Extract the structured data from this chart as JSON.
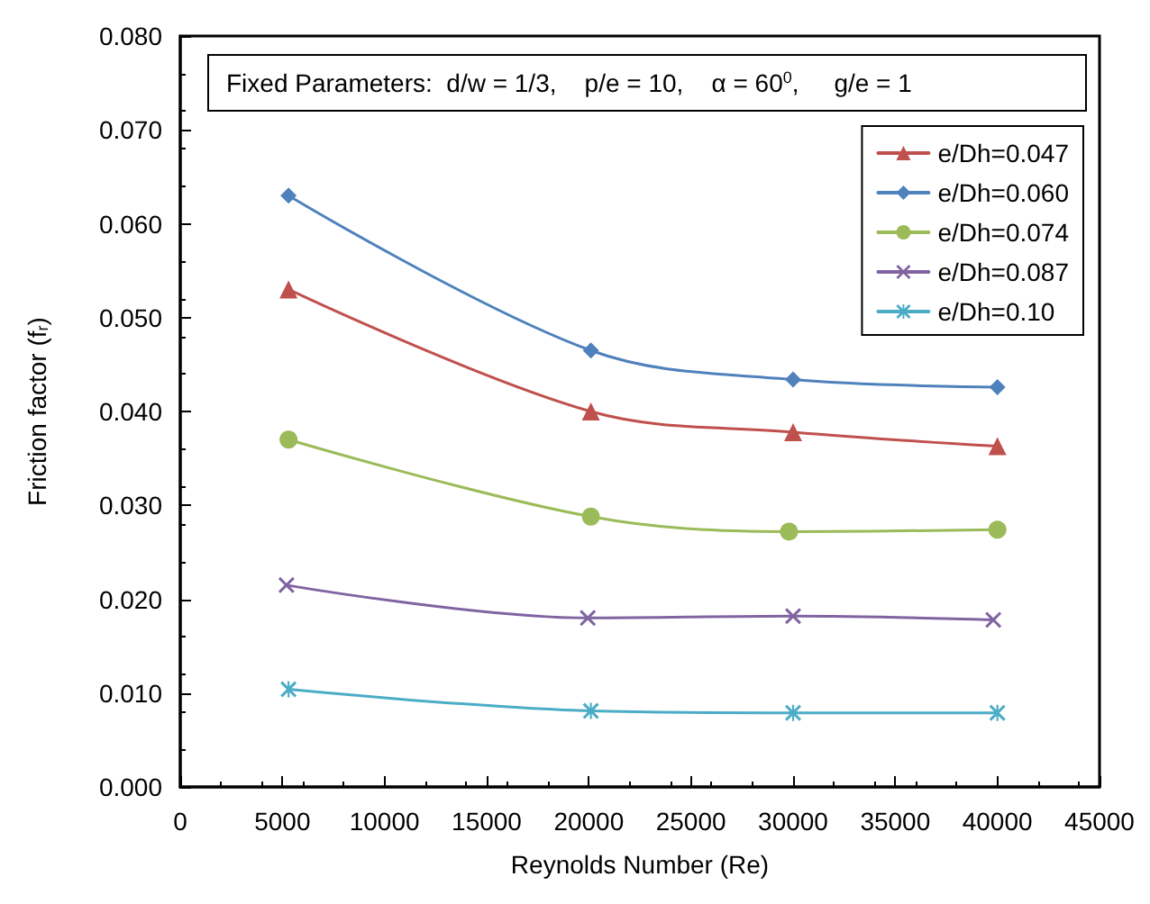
{
  "chart_data": {
    "type": "line",
    "xlabel": "Reynolds Number (Re)",
    "ylabel": "Friction factor (f$_{r}$)",
    "annotations": [
      "Fixed Parameters:  d/w = 1/3,    p/e = 10,    α = 60$^{0}$,     g/e = 1"
    ],
    "series": [
      {
        "name": "e/Dh=0.047",
        "color": "#c0504d",
        "marker": "triangle",
        "x": [
          5300,
          20100,
          30000,
          40000
        ],
        "values": [
          0.053,
          0.04,
          0.0378,
          0.0363
        ]
      },
      {
        "name": "e/Dh=0.060",
        "color": "#4f81bd",
        "marker": "diamond",
        "x": [
          5300,
          20100,
          30000,
          40000
        ],
        "values": [
          0.063,
          0.0465,
          0.0434,
          0.0426
        ]
      },
      {
        "name": "e/Dh=0.074",
        "color": "#9bbb59",
        "marker": "circle",
        "x": [
          5300,
          20100,
          29800,
          40000
        ],
        "values": [
          0.037,
          0.0288,
          0.0272,
          0.0274
        ]
      },
      {
        "name": "e/Dh=0.087",
        "color": "#8064a2",
        "marker": "cross",
        "x": [
          5200,
          19950,
          30000,
          39800
        ],
        "values": [
          0.0215,
          0.018,
          0.0182,
          0.0178
        ]
      },
      {
        "name": "e/Dh=0.10",
        "color": "#4bacc6",
        "marker": "star",
        "x": [
          5300,
          20100,
          30000,
          40000
        ],
        "values": [
          0.0104,
          0.0081,
          0.0079,
          0.0079
        ]
      }
    ],
    "xlim": [
      0,
      45000
    ],
    "xticks": [
      0,
      5000,
      10000,
      15000,
      20000,
      25000,
      30000,
      35000,
      40000,
      45000
    ],
    "ylim": [
      0,
      0.08
    ],
    "yticks": [
      {
        "value": 0,
        "label": "0.000"
      },
      {
        "value": 0.01,
        "label": "0.010"
      },
      {
        "value": 0.02,
        "label": "0.020"
      },
      {
        "value": 0.03,
        "label": "0.030"
      },
      {
        "value": 0.04,
        "label": "0.040"
      },
      {
        "value": 0.05,
        "label": "0.050"
      },
      {
        "value": 0.06,
        "label": "0.060"
      },
      {
        "value": 0.07,
        "label": "0.070"
      },
      {
        "value": 0.08,
        "label": "0.080"
      }
    ],
    "grid": false,
    "legend": "top right",
    "line_style": "solid"
  }
}
